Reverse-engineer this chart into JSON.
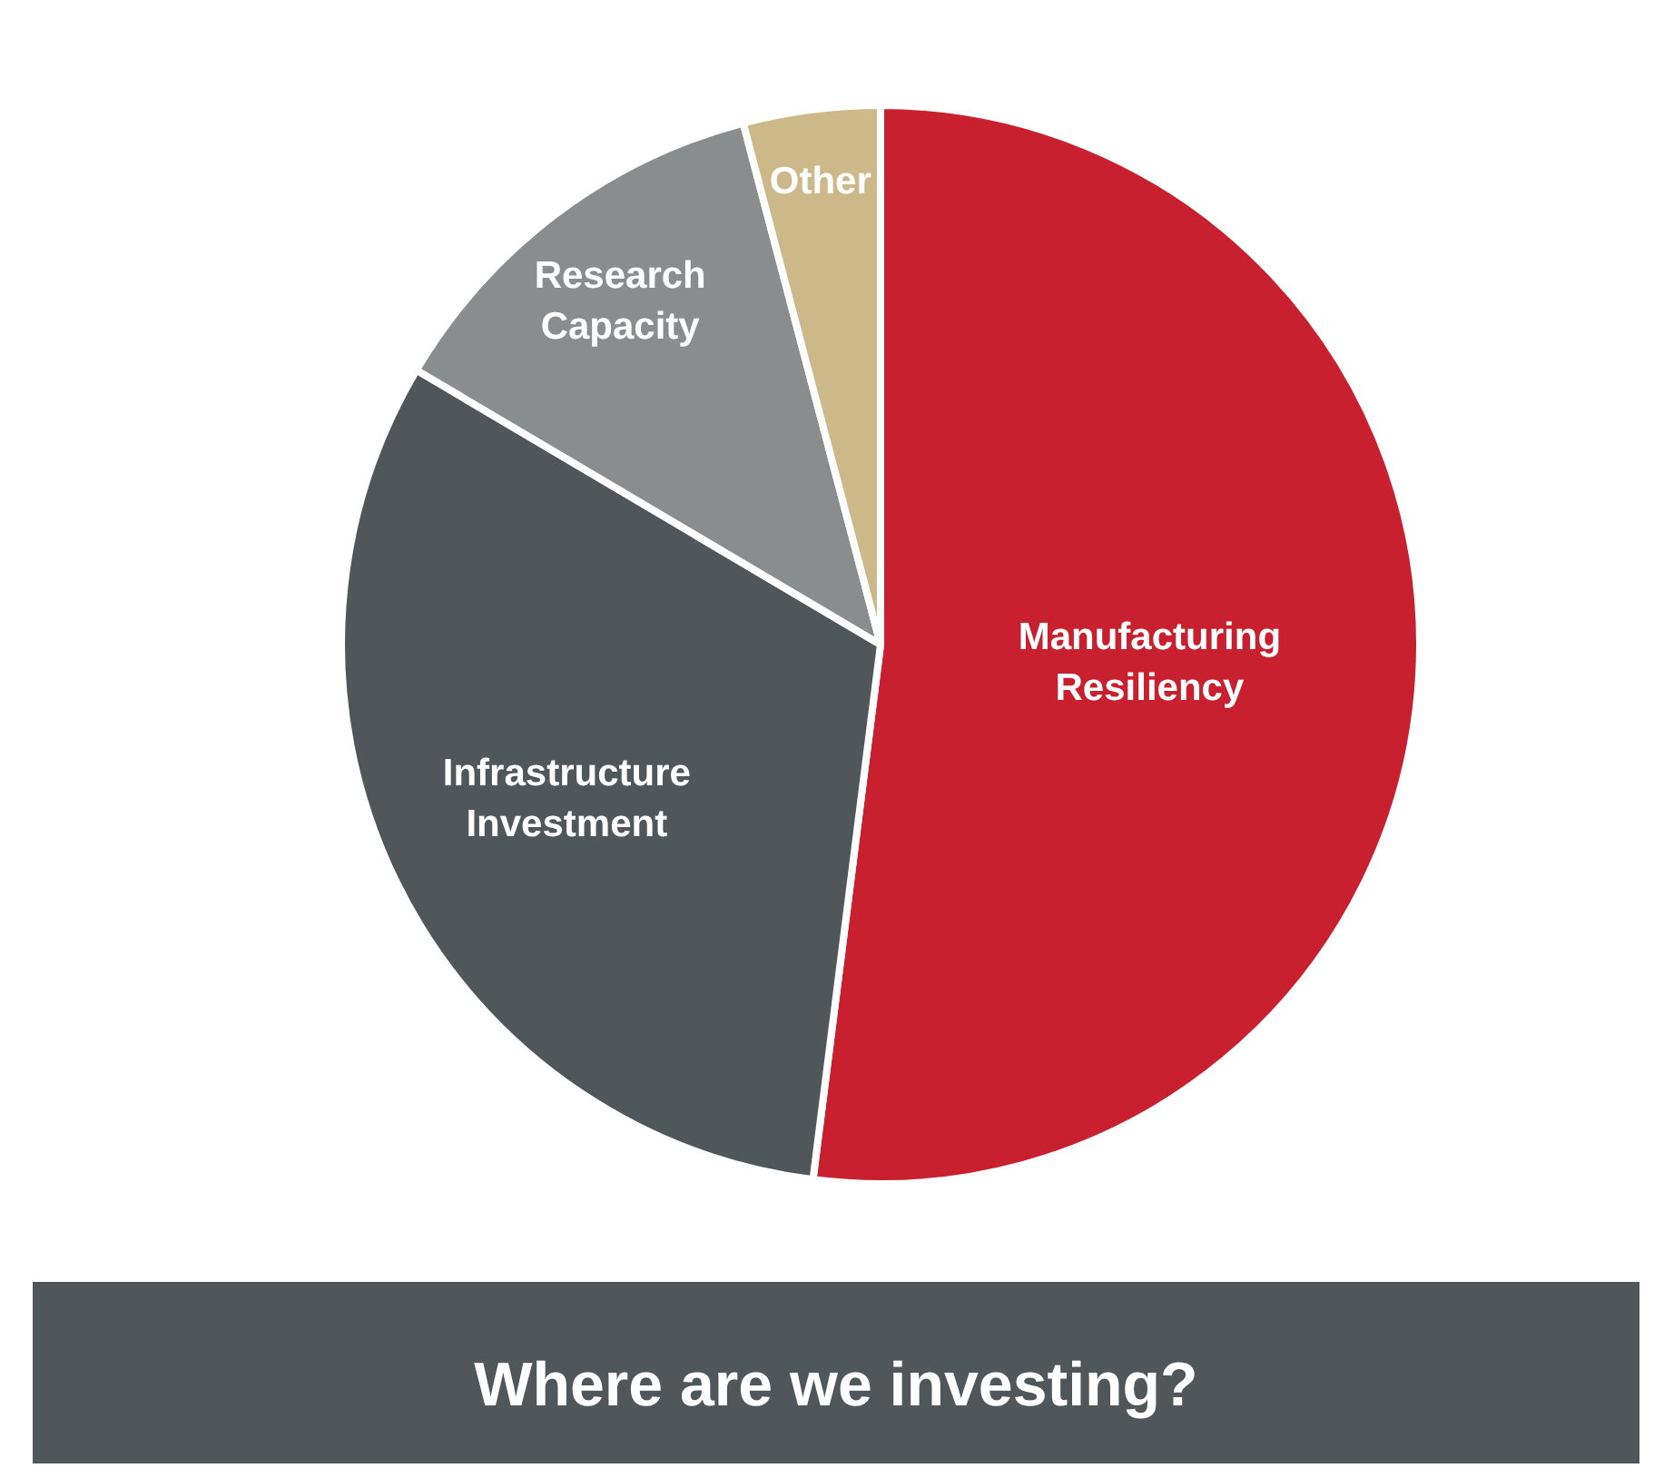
{
  "chart_data": {
    "type": "pie",
    "title": "Where are we investing?",
    "categories": [
      "Manufacturing Resiliency",
      "Infrastructure Investment",
      "Research Capacity",
      "Other"
    ],
    "values": [
      52,
      31.5,
      12.4,
      4.1
    ],
    "colors": [
      "#c8202f",
      "#4f575a",
      "#8a8d8e",
      "#cdb88a"
    ]
  }
}
